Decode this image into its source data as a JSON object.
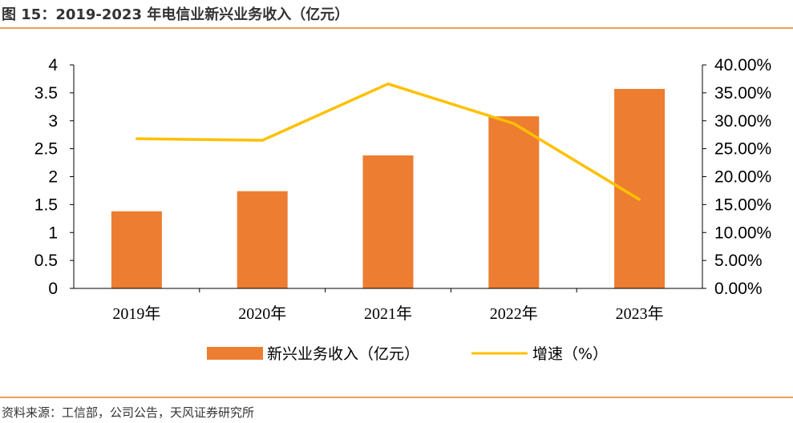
{
  "header": {
    "title": "图 15：2019-2023 年电信业新兴业务收入（亿元）"
  },
  "footer": {
    "source": "资料来源：工信部，公司公告，天风证券研究所"
  },
  "colors": {
    "bar": "#ED7D31",
    "line": "#FFC000",
    "rule": "#E8A05A",
    "axis": "#000000"
  },
  "chart_data": {
    "type": "bar",
    "categories": [
      "2019年",
      "2020年",
      "2021年",
      "2022年",
      "2023年"
    ],
    "series": [
      {
        "name": "新兴业务收入（亿元）",
        "type": "bar",
        "axis": "left",
        "values": [
          1.38,
          1.74,
          2.38,
          3.08,
          3.57
        ]
      },
      {
        "name": "增速（%）",
        "type": "line",
        "axis": "right",
        "values": [
          0.268,
          0.265,
          0.366,
          0.295,
          0.159
        ]
      }
    ],
    "left_axis": {
      "ylim": [
        0,
        4
      ],
      "ticks": [
        "4",
        "3.5",
        "3",
        "2.5",
        "2",
        "1.5",
        "1",
        "0.5",
        "0"
      ]
    },
    "right_axis": {
      "ylim": [
        0,
        0.4
      ],
      "ticks": [
        "40.00%",
        "35.00%",
        "30.00%",
        "25.00%",
        "20.00%",
        "15.00%",
        "10.00%",
        "5.00%",
        "0.00%"
      ]
    },
    "legend": {
      "placement": "bottom",
      "entries": [
        "新兴业务收入（亿元）",
        "增速（%）"
      ]
    },
    "grid": false
  }
}
